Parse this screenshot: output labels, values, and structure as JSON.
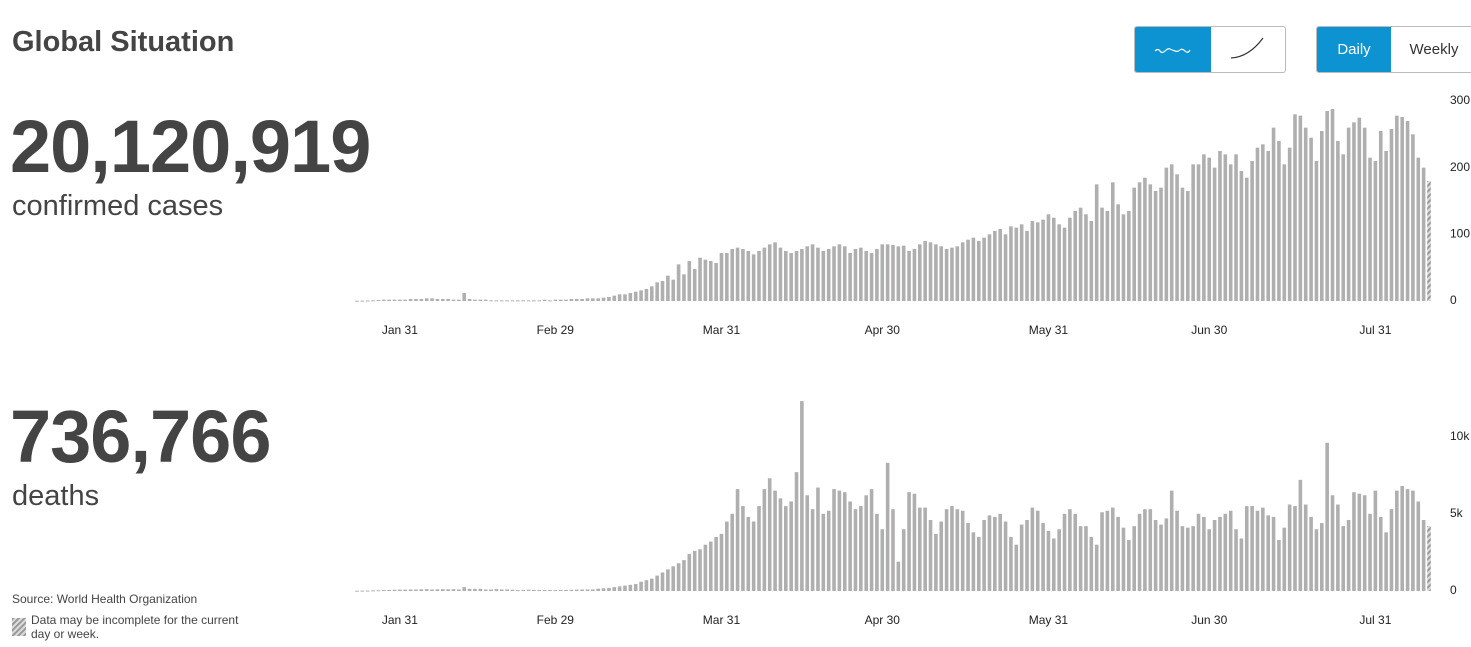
{
  "header": {
    "title": "Global Situation",
    "toggle": [
      "Daily",
      "Weekly"
    ]
  },
  "stats": [
    {
      "value": "20,120,919",
      "label": "confirmed cases"
    },
    {
      "value": "736,766",
      "label": "deaths"
    }
  ],
  "footer": {
    "source": "Source: World Health Organization",
    "note": "Data may be incomplete for the current day or week."
  },
  "chart_data": [
    {
      "type": "bar",
      "color": "#b0afaf",
      "categories": [
        null,
        null,
        null,
        null,
        null,
        null,
        null,
        null,
        "Jan 31",
        null,
        null,
        null,
        null,
        null,
        null,
        null,
        null,
        null,
        null,
        null,
        null,
        null,
        null,
        null,
        null,
        null,
        null,
        null,
        null,
        null,
        null,
        null,
        null,
        null,
        null,
        null,
        null,
        "Feb 29",
        null,
        null,
        null,
        null,
        null,
        null,
        null,
        null,
        null,
        null,
        null,
        null,
        null,
        null,
        null,
        null,
        null,
        null,
        null,
        null,
        null,
        null,
        null,
        null,
        null,
        null,
        null,
        null,
        null,
        null,
        "Mar 31",
        null,
        null,
        null,
        null,
        null,
        null,
        null,
        null,
        null,
        null,
        null,
        null,
        null,
        null,
        null,
        null,
        null,
        null,
        null,
        null,
        null,
        null,
        null,
        null,
        null,
        null,
        null,
        null,
        null,
        "Apr 30",
        null,
        null,
        null,
        null,
        null,
        null,
        null,
        null,
        null,
        null,
        null,
        null,
        null,
        null,
        null,
        null,
        null,
        null,
        null,
        null,
        null,
        null,
        null,
        null,
        null,
        null,
        null,
        null,
        null,
        null,
        "May 31",
        null,
        null,
        null,
        null,
        null,
        null,
        null,
        null,
        null,
        null,
        null,
        null,
        null,
        null,
        null,
        null,
        null,
        null,
        null,
        null,
        null,
        null,
        null,
        null,
        null,
        null,
        null,
        null,
        null,
        "Jun 30",
        null,
        null,
        null,
        null,
        null,
        null,
        null,
        null,
        null,
        null,
        null,
        null,
        null,
        null,
        null,
        null,
        null,
        null,
        null,
        null,
        null,
        null,
        null,
        null,
        null,
        null,
        null,
        null,
        null,
        null,
        "Jul 31",
        null,
        null,
        null,
        null,
        null,
        null,
        null,
        null,
        null,
        null
      ],
      "values": [
        0.5,
        0.6,
        0.8,
        1,
        1.5,
        2,
        2,
        2,
        2,
        2,
        3,
        3,
        3,
        4,
        4,
        3,
        3,
        3,
        2,
        2,
        12,
        3,
        2,
        2,
        2,
        1,
        1,
        1,
        1,
        1,
        1,
        1,
        1,
        1,
        1,
        2,
        1,
        2,
        2,
        2,
        3,
        3,
        3,
        4,
        4,
        4,
        5,
        6,
        8,
        10,
        10,
        12,
        14,
        16,
        18,
        22,
        28,
        30,
        38,
        32,
        55,
        40,
        60,
        48,
        65,
        62,
        60,
        57,
        72,
        72,
        78,
        80,
        78,
        75,
        70,
        75,
        80,
        85,
        88,
        80,
        75,
        72,
        75,
        78,
        82,
        85,
        80,
        75,
        78,
        82,
        85,
        82,
        72,
        78,
        80,
        75,
        72,
        78,
        85,
        85,
        84,
        82,
        83,
        75,
        78,
        85,
        90,
        88,
        85,
        82,
        78,
        80,
        82,
        88,
        92,
        95,
        90,
        95,
        100,
        105,
        108,
        100,
        112,
        110,
        115,
        105,
        120,
        118,
        122,
        130,
        125,
        115,
        110,
        125,
        135,
        140,
        130,
        120,
        175,
        140,
        135,
        178,
        145,
        130,
        135,
        170,
        178,
        185,
        175,
        165,
        170,
        200,
        205,
        190,
        170,
        165,
        205,
        205,
        220,
        215,
        200,
        225,
        220,
        205,
        220,
        195,
        185,
        210,
        230,
        235,
        225,
        260,
        240,
        205,
        230,
        280,
        278,
        260,
        245,
        210,
        255,
        285,
        288,
        240,
        220,
        260,
        268,
        275,
        260,
        215,
        210,
        255,
        225,
        258,
        278,
        276,
        270,
        250,
        215,
        200,
        180
      ],
      "ylim": [
        0,
        300
      ],
      "yticks": [
        0,
        100,
        200,
        300
      ]
    },
    {
      "type": "bar",
      "color": "#b0afaf",
      "categories": [
        null,
        null,
        null,
        null,
        null,
        null,
        null,
        null,
        "Jan 31",
        null,
        null,
        null,
        null,
        null,
        null,
        null,
        null,
        null,
        null,
        null,
        null,
        null,
        null,
        null,
        null,
        null,
        null,
        null,
        null,
        null,
        null,
        null,
        null,
        null,
        null,
        null,
        null,
        "Feb 29",
        null,
        null,
        null,
        null,
        null,
        null,
        null,
        null,
        null,
        null,
        null,
        null,
        null,
        null,
        null,
        null,
        null,
        null,
        null,
        null,
        null,
        null,
        null,
        null,
        null,
        null,
        null,
        null,
        null,
        null,
        "Mar 31",
        null,
        null,
        null,
        null,
        null,
        null,
        null,
        null,
        null,
        null,
        null,
        null,
        null,
        null,
        null,
        null,
        null,
        null,
        null,
        null,
        null,
        null,
        null,
        null,
        null,
        null,
        null,
        null,
        null,
        "Apr 30",
        null,
        null,
        null,
        null,
        null,
        null,
        null,
        null,
        null,
        null,
        null,
        null,
        null,
        null,
        null,
        null,
        null,
        null,
        null,
        null,
        null,
        null,
        null,
        null,
        null,
        null,
        null,
        null,
        null,
        null,
        "May 31",
        null,
        null,
        null,
        null,
        null,
        null,
        null,
        null,
        null,
        null,
        null,
        null,
        null,
        null,
        null,
        null,
        null,
        null,
        null,
        null,
        null,
        null,
        null,
        null,
        null,
        null,
        null,
        null,
        null,
        "Jun 30",
        null,
        null,
        null,
        null,
        null,
        null,
        null,
        null,
        null,
        null,
        null,
        null,
        null,
        null,
        null,
        null,
        null,
        null,
        null,
        null,
        null,
        null,
        null,
        null,
        null,
        null,
        null,
        null,
        null,
        null,
        "Jul 31",
        null,
        null,
        null,
        null,
        null,
        null,
        null,
        null,
        null,
        null
      ],
      "values": [
        20,
        25,
        30,
        40,
        50,
        60,
        70,
        80,
        90,
        90,
        100,
        100,
        110,
        120,
        100,
        110,
        120,
        110,
        120,
        100,
        250,
        140,
        140,
        140,
        100,
        100,
        120,
        100,
        100,
        80,
        60,
        70,
        80,
        70,
        60,
        60,
        70,
        60,
        70,
        70,
        80,
        90,
        100,
        100,
        100,
        150,
        180,
        200,
        250,
        300,
        350,
        400,
        450,
        600,
        700,
        800,
        1000,
        1200,
        1400,
        1600,
        1800,
        2000,
        2400,
        2600,
        2700,
        3000,
        3200,
        3500,
        3700,
        4500,
        5000,
        6600,
        5500,
        4800,
        4500,
        5500,
        6600,
        7300,
        6500,
        6000,
        5500,
        5800,
        7700,
        12300,
        6200,
        5300,
        6700,
        5000,
        5200,
        6600,
        6500,
        6400,
        5800,
        5300,
        5500,
        6200,
        6600,
        5000,
        4000,
        8300,
        5300,
        1900,
        4000,
        6400,
        6300,
        5400,
        5400,
        4600,
        3700,
        4500,
        5300,
        5500,
        5300,
        5200,
        4400,
        3800,
        3500,
        4600,
        4900,
        4800,
        5000,
        4500,
        3500,
        3000,
        4300,
        4600,
        5400,
        5200,
        4400,
        3900,
        3400,
        4000,
        5000,
        5300,
        5000,
        4200,
        4200,
        3500,
        3000,
        5100,
        5200,
        5400,
        4800,
        4100,
        3300,
        4200,
        5000,
        5300,
        5300,
        4600,
        4300,
        4700,
        6500,
        5200,
        4200,
        4100,
        4200,
        5000,
        4800,
        4000,
        4600,
        4800,
        5000,
        5200,
        4000,
        3400,
        5500,
        5500,
        5200,
        5400,
        4900,
        4800,
        3300,
        4100,
        5600,
        5500,
        7200,
        5600,
        4800,
        4000,
        4400,
        9600,
        6200,
        5600,
        4200,
        4600,
        6400,
        6300,
        6200,
        5000,
        6500,
        4800,
        3800,
        5300,
        6500,
        6800,
        6600,
        6500,
        5800,
        4600,
        4200
      ],
      "ylim": [
        0,
        12500
      ],
      "yticks": [
        0,
        {
          "value": 5000,
          "label": "5k"
        },
        {
          "value": 10000,
          "label": "10k"
        }
      ]
    }
  ]
}
